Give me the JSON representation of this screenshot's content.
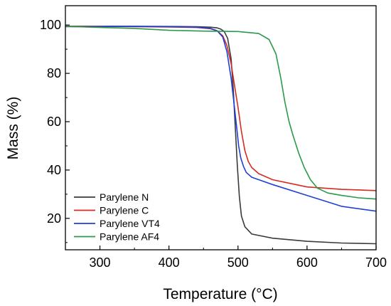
{
  "chart_data": {
    "type": "line",
    "xlabel": "Temperature (°C)",
    "ylabel": "Mass (%)",
    "xlim": [
      250,
      700
    ],
    "ylim": [
      7,
      108
    ],
    "x_ticks": [
      300,
      400,
      500,
      600,
      700
    ],
    "y_ticks": [
      20,
      40,
      60,
      80,
      100
    ],
    "grid": false,
    "legend_position": "bottom-left",
    "series": [
      {
        "name": "Parylene N",
        "color": "#3a3a3a",
        "x": [
          250,
          300,
          350,
          400,
          440,
          460,
          470,
          475,
          480,
          485,
          490,
          493,
          496,
          499,
          502,
          505,
          510,
          520,
          550,
          600,
          650,
          700
        ],
        "y": [
          99.5,
          99.5,
          99.5,
          99.4,
          99.3,
          99.1,
          98.8,
          98.3,
          97.3,
          94.5,
          86,
          74,
          58,
          42,
          29,
          21,
          16.5,
          13.5,
          11.8,
          10.5,
          9.8,
          9.5
        ]
      },
      {
        "name": "Parylene C",
        "color": "#d62a22",
        "x": [
          250,
          300,
          350,
          400,
          440,
          460,
          470,
          478,
          484,
          490,
          495,
          500,
          505,
          510,
          515,
          520,
          530,
          550,
          600,
          650,
          700
        ],
        "y": [
          99.5,
          99.4,
          99.3,
          99.2,
          99.0,
          98.5,
          97.6,
          95.5,
          91.5,
          84,
          75,
          66,
          56,
          48,
          43.5,
          41,
          38.5,
          36,
          33,
          32,
          31.5
        ]
      },
      {
        "name": "Parylene VT4",
        "color": "#1f3fd8",
        "x": [
          250,
          300,
          320,
          350,
          400,
          440,
          460,
          470,
          478,
          484,
          490,
          494,
          498,
          501,
          504,
          508,
          512,
          520,
          550,
          600,
          650,
          700
        ],
        "y": [
          99.3,
          99.3,
          99.5,
          99.4,
          99.3,
          99.1,
          98.6,
          97.6,
          95,
          89,
          78,
          68,
          58,
          50,
          45,
          41.5,
          39,
          37,
          34,
          29.5,
          25,
          23
        ]
      },
      {
        "name": "Parylene AF4",
        "color": "#2a9a4c",
        "x": [
          250,
          300,
          350,
          400,
          450,
          500,
          530,
          545,
          555,
          562,
          568,
          574,
          580,
          588,
          596,
          605,
          615,
          630,
          650,
          675,
          700
        ],
        "y": [
          99.5,
          99.0,
          98.6,
          97.8,
          97.5,
          97.3,
          96.5,
          94,
          88,
          78,
          68,
          60,
          54,
          47,
          41,
          36,
          32.5,
          30.5,
          29.5,
          28.5,
          28
        ]
      }
    ]
  }
}
